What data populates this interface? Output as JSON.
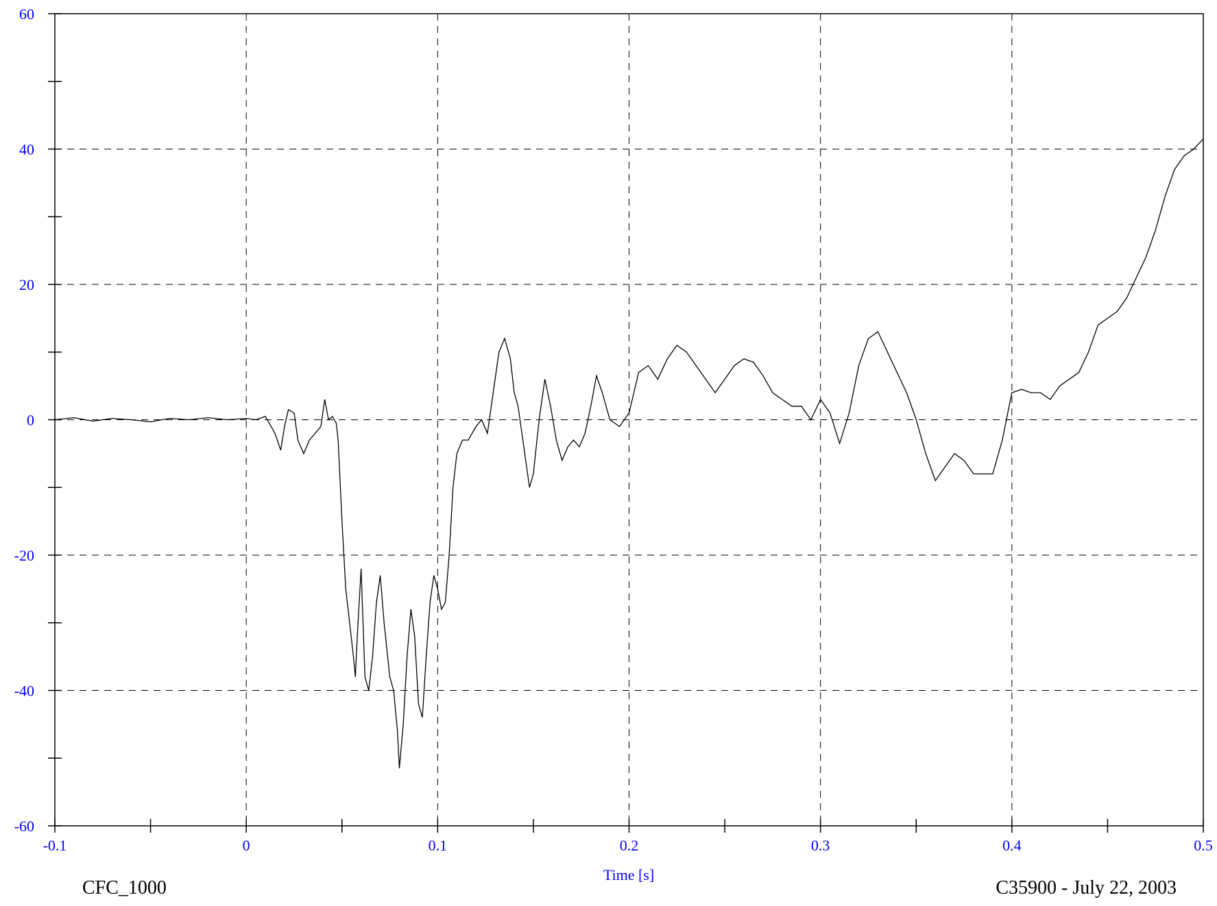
{
  "chart_data": {
    "type": "line",
    "title": "",
    "xlabel": "Time [s]",
    "ylabel": "",
    "xlim": [
      -0.1,
      0.5
    ],
    "ylim": [
      -60,
      60
    ],
    "grid": true,
    "x_ticks": [
      -0.1,
      0,
      0.1,
      0.2,
      0.3,
      0.4,
      0.5
    ],
    "x_tick_labels": [
      "-0.1",
      "0",
      "0.1",
      "0.2",
      "0.3",
      "0.4",
      "0.5"
    ],
    "y_ticks": [
      -60,
      -40,
      -20,
      0,
      20,
      40,
      60
    ],
    "y_tick_labels": [
      "-60",
      "-40",
      "-20",
      "0",
      "20",
      "40",
      "60"
    ],
    "footer_left": "CFC_1000",
    "footer_right": "C35900 - July 22, 2003",
    "colors": {
      "line": "#000000",
      "tick_labels": "#0000ff",
      "grid": "#000000"
    },
    "series": [
      {
        "x": [
          -0.1,
          -0.09,
          -0.08,
          -0.07,
          -0.06,
          -0.05,
          -0.04,
          -0.03,
          -0.02,
          -0.01,
          0.0,
          0.005,
          0.01,
          0.012,
          0.015,
          0.018,
          0.02,
          0.022,
          0.025,
          0.027,
          0.03,
          0.033,
          0.036,
          0.039,
          0.041,
          0.043,
          0.045,
          0.047,
          0.048,
          0.05,
          0.052,
          0.054,
          0.056,
          0.057,
          0.058,
          0.06,
          0.062,
          0.064,
          0.066,
          0.068,
          0.07,
          0.072,
          0.075,
          0.077,
          0.079,
          0.08,
          0.082,
          0.084,
          0.086,
          0.088,
          0.09,
          0.092,
          0.094,
          0.096,
          0.098,
          0.1,
          0.102,
          0.104,
          0.106,
          0.108,
          0.11,
          0.113,
          0.116,
          0.12,
          0.123,
          0.126,
          0.129,
          0.132,
          0.135,
          0.138,
          0.14,
          0.142,
          0.145,
          0.148,
          0.15,
          0.153,
          0.156,
          0.159,
          0.162,
          0.165,
          0.168,
          0.171,
          0.174,
          0.177,
          0.18,
          0.183,
          0.186,
          0.19,
          0.195,
          0.2,
          0.205,
          0.21,
          0.215,
          0.22,
          0.225,
          0.23,
          0.235,
          0.24,
          0.245,
          0.25,
          0.255,
          0.26,
          0.265,
          0.27,
          0.275,
          0.28,
          0.285,
          0.29,
          0.295,
          0.3,
          0.305,
          0.31,
          0.315,
          0.32,
          0.325,
          0.33,
          0.335,
          0.34,
          0.345,
          0.35,
          0.355,
          0.36,
          0.365,
          0.37,
          0.375,
          0.38,
          0.385,
          0.39,
          0.395,
          0.4,
          0.405,
          0.41,
          0.415,
          0.42,
          0.425,
          0.43,
          0.435,
          0.44,
          0.445,
          0.45,
          0.455,
          0.46,
          0.465,
          0.47,
          0.475,
          0.48,
          0.485,
          0.49,
          0.495,
          0.5
        ],
        "y": [
          0.0,
          0.3,
          -0.2,
          0.2,
          0.0,
          -0.3,
          0.2,
          0.0,
          0.3,
          0.0,
          0.2,
          0.0,
          0.5,
          -0.5,
          -2.0,
          -4.5,
          -1.0,
          1.5,
          1.0,
          -3.0,
          -5.0,
          -3.0,
          -2.0,
          -1.0,
          3.0,
          0.0,
          0.5,
          -0.5,
          -3.0,
          -15.0,
          -25.0,
          -30.0,
          -35.0,
          -38.0,
          -32.0,
          -22.0,
          -38.0,
          -40.0,
          -35.0,
          -27.0,
          -23.0,
          -30.0,
          -38.0,
          -40.0,
          -46.0,
          -51.5,
          -45.0,
          -35.0,
          -28.0,
          -32.0,
          -42.0,
          -44.0,
          -35.0,
          -27.0,
          -23.0,
          -25.0,
          -28.0,
          -27.0,
          -20.0,
          -10.0,
          -5.0,
          -3.0,
          -3.0,
          -1.0,
          0.0,
          -2.0,
          4.0,
          10.0,
          12.0,
          9.0,
          4.0,
          2.0,
          -4.0,
          -10.0,
          -8.0,
          0.0,
          6.0,
          2.0,
          -3.0,
          -6.0,
          -4.0,
          -3.0,
          -4.0,
          -2.0,
          2.0,
          6.5,
          4.0,
          0.0,
          -1.0,
          1.0,
          7.0,
          8.0,
          6.0,
          9.0,
          11.0,
          10.0,
          8.0,
          6.0,
          4.0,
          6.0,
          8.0,
          9.0,
          8.5,
          6.5,
          4.0,
          3.0,
          2.0,
          2.0,
          0.0,
          3.0,
          1.0,
          -3.5,
          1.0,
          8.0,
          12.0,
          13.0,
          10.0,
          7.0,
          4.0,
          0.0,
          -5.0,
          -9.0,
          -7.0,
          -5.0,
          -6.0,
          -8.0,
          -8.0,
          -8.0,
          -3.0,
          4.0,
          4.5,
          4.0,
          4.0,
          3.0,
          5.0,
          6.0,
          7.0,
          10.0,
          14.0,
          15.0,
          16.0,
          18.0,
          21.0,
          24.0,
          28.0,
          33.0,
          37.0,
          39.0,
          40.0,
          41.5
        ]
      }
    ]
  }
}
